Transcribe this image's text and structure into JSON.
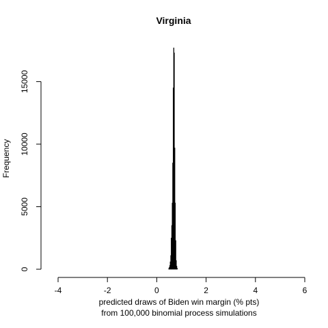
{
  "chart_data": {
    "type": "bar",
    "title": "Virginia",
    "xlabel_lines": [
      "predicted draws of Biden win margin (% pts)",
      "from 100,000 binomial process simulations"
    ],
    "ylabel": "Frequency",
    "xlim": [
      -4,
      6
    ],
    "ylim": [
      0,
      17700
    ],
    "x_ticks": [
      -4,
      -2,
      0,
      2,
      4,
      6
    ],
    "y_ticks": [
      0,
      5000,
      10000,
      15000
    ],
    "bar_color": "#000000",
    "bin_width": 0.02,
    "bins": [
      {
        "x": 0.48,
        "value": 60
      },
      {
        "x": 0.5,
        "value": 150
      },
      {
        "x": 0.52,
        "value": 300
      },
      {
        "x": 0.54,
        "value": 600
      },
      {
        "x": 0.56,
        "value": 1100
      },
      {
        "x": 0.58,
        "value": 2500
      },
      {
        "x": 0.6,
        "value": 3500
      },
      {
        "x": 0.62,
        "value": 5300
      },
      {
        "x": 0.64,
        "value": 8500
      },
      {
        "x": 0.66,
        "value": 14500
      },
      {
        "x": 0.68,
        "value": 17700
      },
      {
        "x": 0.7,
        "value": 17300
      },
      {
        "x": 0.72,
        "value": 9700
      },
      {
        "x": 0.74,
        "value": 5300
      },
      {
        "x": 0.76,
        "value": 2300
      },
      {
        "x": 0.78,
        "value": 700
      },
      {
        "x": 0.8,
        "value": 250
      },
      {
        "x": 0.82,
        "value": 80
      }
    ]
  }
}
